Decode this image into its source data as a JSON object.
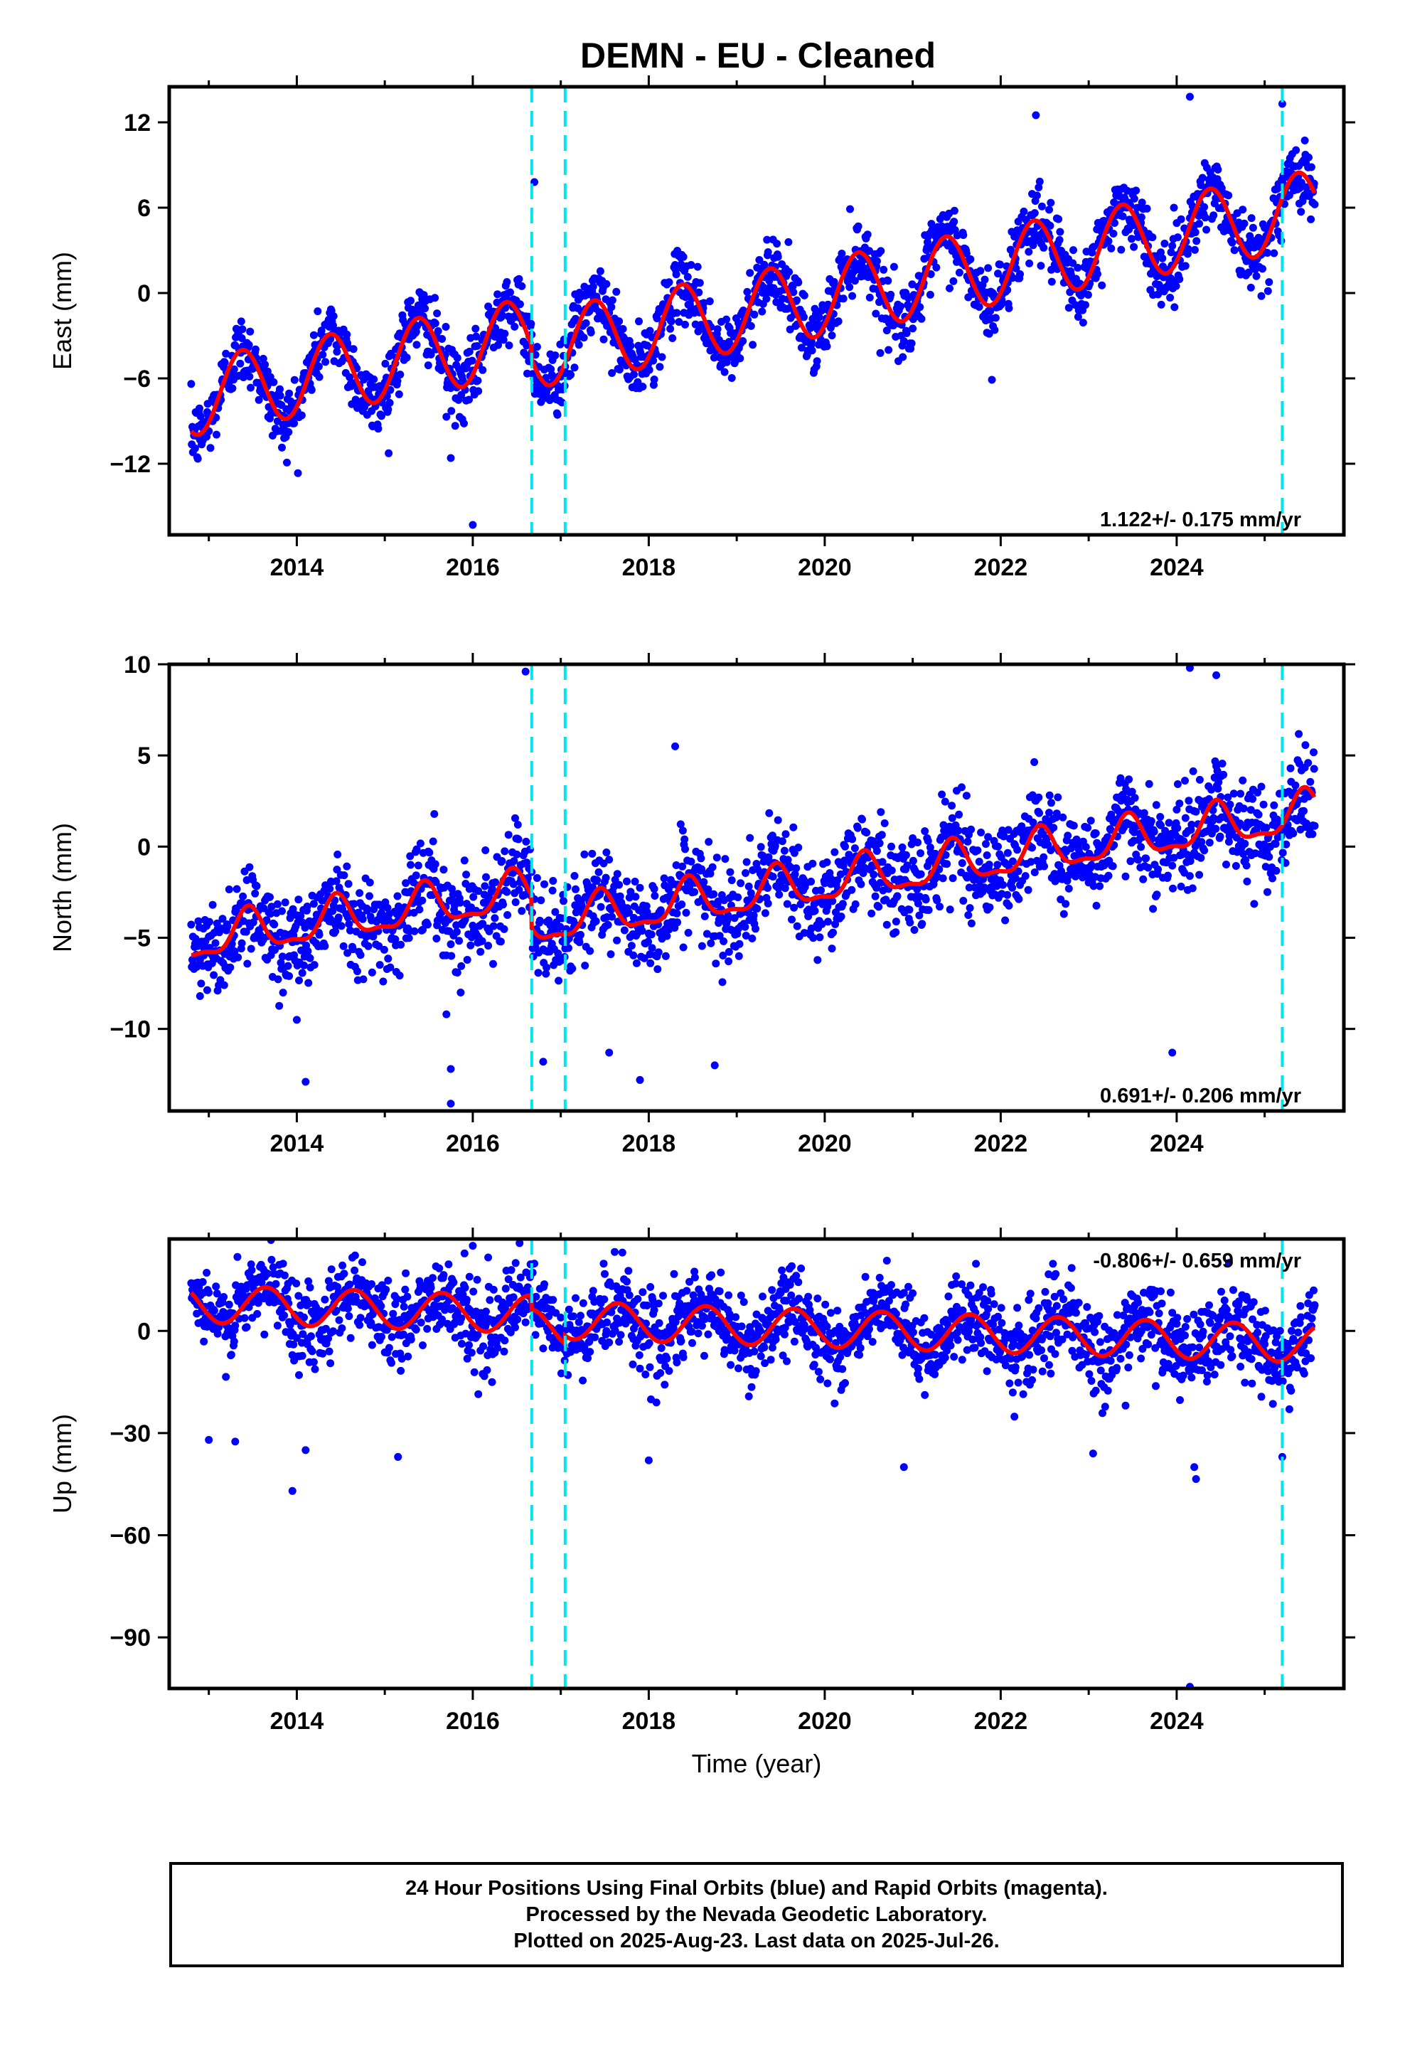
{
  "title": "DEMN  - EU - Cleaned",
  "footer": {
    "line1": "24 Hour Positions Using Final Orbits (blue) and Rapid Orbits (magenta).",
    "line2": "Processed by the Nevada Geodetic Laboratory.",
    "line3": "Plotted on 2025-Aug-23. Last data on 2025-Jul-26."
  },
  "colors": {
    "data_points": "#0000ff",
    "model_fit": "#ff0000",
    "offset_lines": "#00e5ee"
  },
  "chart_data": [
    {
      "type": "scatter",
      "component": "east",
      "ylabel": "East (mm)",
      "xlabel": "",
      "xlim": [
        2012.55,
        2025.9
      ],
      "ylim": [
        -17,
        14.5
      ],
      "x_ticks": [
        2014,
        2016,
        2018,
        2020,
        2022,
        2024
      ],
      "y_ticks": [
        12,
        6,
        0,
        -6,
        -12
      ],
      "rate_label": "1.122+/- 0.175 mm/yr",
      "offset_epochs": [
        2016.67,
        2017.05,
        2025.2
      ],
      "data_range": [
        2012.8,
        2025.57
      ],
      "model": {
        "rate": 1.122,
        "intercept_at_2019": -0.4,
        "annual_amplitude": 2.7,
        "annual_peak_phase": 0.38,
        "offsets": [
          -1.0,
          0.0,
          0.0
        ]
      },
      "scatter_noise_sd": 1.2,
      "outliers": [
        {
          "x": 2015.7,
          "y": -8.7
        },
        {
          "x": 2015.75,
          "y": -11.6
        },
        {
          "x": 2016.0,
          "y": -16.3
        },
        {
          "x": 2016.7,
          "y": 7.8
        },
        {
          "x": 2021.9,
          "y": -6.1
        },
        {
          "x": 2022.4,
          "y": 12.5
        },
        {
          "x": 2024.15,
          "y": 13.8
        },
        {
          "x": 2025.2,
          "y": 13.3
        }
      ]
    },
    {
      "type": "scatter",
      "component": "north",
      "ylabel": "North (mm)",
      "xlabel": "",
      "xlim": [
        2012.55,
        2025.9
      ],
      "ylim": [
        -14.5,
        10
      ],
      "x_ticks": [
        2014,
        2016,
        2018,
        2020,
        2022,
        2024
      ],
      "y_ticks": [
        10,
        5,
        0,
        -5,
        -10
      ],
      "rate_label": "0.691+/- 0.206 mm/yr",
      "offset_epochs": [
        2016.67,
        2017.05,
        2025.2
      ],
      "data_range": [
        2012.8,
        2025.57
      ],
      "model": {
        "rate": 0.691,
        "intercept_at_2019": -0.9,
        "annual_amplitude": 1.1,
        "annual_peak_phase": 0.45,
        "semiannual_amplitude": 0.4,
        "offsets": [
          -1.8,
          0.0,
          0.0
        ]
      },
      "scatter_noise_sd": 1.3,
      "outliers": [
        {
          "x": 2012.9,
          "y": -8.2
        },
        {
          "x": 2013.1,
          "y": -7.9
        },
        {
          "x": 2014.1,
          "y": -12.9
        },
        {
          "x": 2014.0,
          "y": -9.5
        },
        {
          "x": 2015.7,
          "y": -9.2
        },
        {
          "x": 2015.75,
          "y": -12.2
        },
        {
          "x": 2015.75,
          "y": -14.1
        },
        {
          "x": 2016.6,
          "y": 9.6
        },
        {
          "x": 2016.8,
          "y": -11.8
        },
        {
          "x": 2017.55,
          "y": -11.3
        },
        {
          "x": 2017.9,
          "y": -12.8
        },
        {
          "x": 2018.3,
          "y": 5.5
        },
        {
          "x": 2018.75,
          "y": -12.0
        },
        {
          "x": 2023.95,
          "y": -11.3
        },
        {
          "x": 2024.15,
          "y": 9.8
        },
        {
          "x": 2024.45,
          "y": 9.4
        }
      ]
    },
    {
      "type": "scatter",
      "component": "up",
      "ylabel": "Up (mm)",
      "xlabel": "Time (year)",
      "xlim": [
        2012.55,
        2025.9
      ],
      "ylim": [
        -105,
        27
      ],
      "x_ticks": [
        2014,
        2016,
        2018,
        2020,
        2022,
        2024
      ],
      "y_ticks": [
        0,
        -30,
        -60,
        -90
      ],
      "rate_label": "-0.806+/- 0.659 mm/yr",
      "offset_epochs": [
        2016.67,
        2017.05,
        2025.2
      ],
      "data_range": [
        2012.8,
        2025.57
      ],
      "model": {
        "rate": -0.806,
        "intercept_at_2019": 3.0,
        "annual_amplitude": 5.5,
        "annual_peak_phase": 0.65,
        "offsets": [
          -4.0,
          2.5,
          0.0
        ]
      },
      "scatter_noise_sd": 6.0,
      "outliers": [
        {
          "x": 2013.0,
          "y": -32.0
        },
        {
          "x": 2013.3,
          "y": -32.5
        },
        {
          "x": 2013.95,
          "y": -47.0
        },
        {
          "x": 2014.1,
          "y": -35.0
        },
        {
          "x": 2015.15,
          "y": -37.0
        },
        {
          "x": 2016.0,
          "y": 25.0
        },
        {
          "x": 2017.7,
          "y": 23.0
        },
        {
          "x": 2018.0,
          "y": -38.0
        },
        {
          "x": 2020.9,
          "y": -40.0
        },
        {
          "x": 2022.55,
          "y": -10.0
        },
        {
          "x": 2023.05,
          "y": -36.0
        },
        {
          "x": 2024.15,
          "y": -104.5
        },
        {
          "x": 2024.2,
          "y": -40.0
        },
        {
          "x": 2024.22,
          "y": -43.5
        },
        {
          "x": 2025.2,
          "y": -37.0
        }
      ]
    }
  ]
}
